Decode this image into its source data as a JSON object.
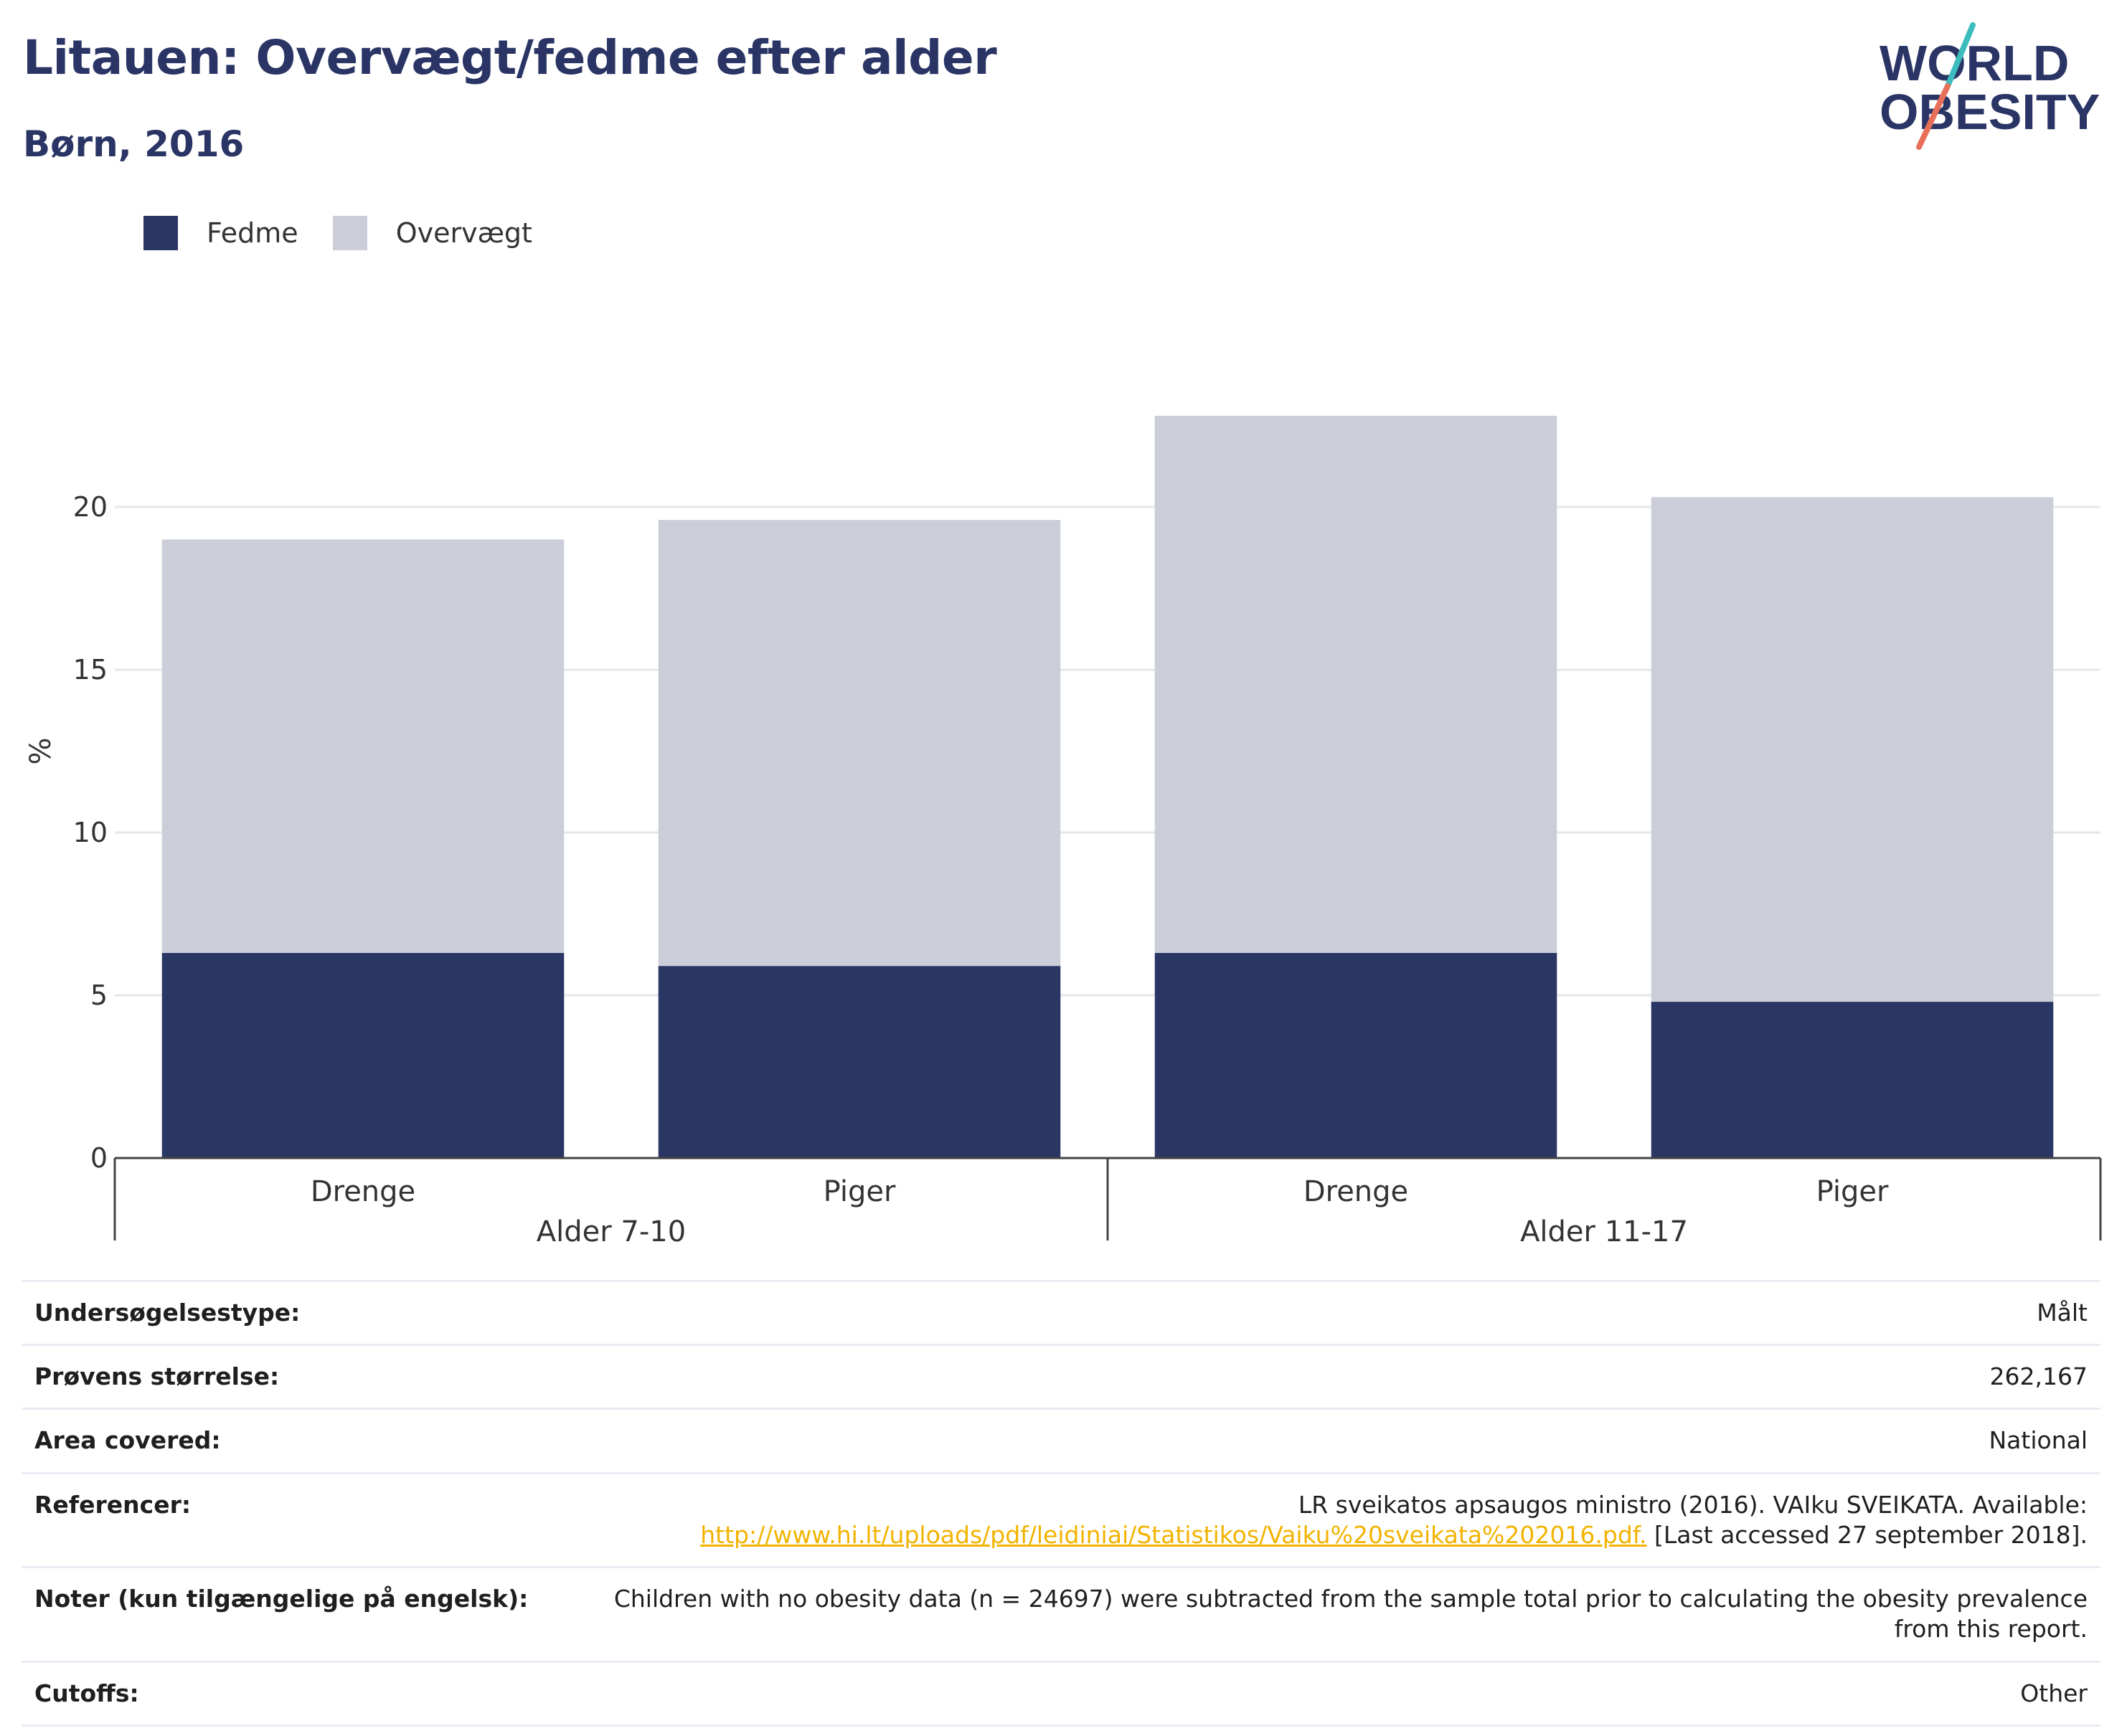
{
  "header": {
    "title": "Litauen: Overvægt/fedme efter alder",
    "subtitle": "Børn, 2016"
  },
  "logo": {
    "line1": "WORLD",
    "line2": "OBESITY",
    "colors": {
      "text": "#2a3565",
      "slash_top": "#3cbcbc",
      "slash_bottom": "#e8705a"
    }
  },
  "legend": {
    "items": [
      {
        "label": "Fedme",
        "color": "#2a3664"
      },
      {
        "label": "Overvægt",
        "color": "#cbcdd9"
      }
    ]
  },
  "chart_data": {
    "type": "bar",
    "stacked": true,
    "ylabel": "%",
    "ylim": [
      0,
      25
    ],
    "yticks": [
      0,
      5,
      10,
      15,
      20
    ],
    "grid": true,
    "legend_position": "top-left",
    "categories": [
      "Drenge",
      "Piger",
      "Drenge",
      "Piger"
    ],
    "groups": [
      {
        "label": "Alder 7-10",
        "categories": [
          "Drenge",
          "Piger"
        ]
      },
      {
        "label": "Alder 11-17",
        "categories": [
          "Drenge",
          "Piger"
        ]
      }
    ],
    "series": [
      {
        "name": "Fedme",
        "color": "#2a3664",
        "values": [
          6.3,
          5.9,
          6.3,
          4.8
        ]
      },
      {
        "name": "Overvægt",
        "color": "#cbcdd9",
        "values": [
          12.7,
          13.7,
          16.5,
          15.5
        ]
      }
    ]
  },
  "info": {
    "rows": [
      {
        "label": "Undersøgelsestype:",
        "value": "Målt"
      },
      {
        "label": "Prøvens størrelse:",
        "value": "262,167"
      },
      {
        "label": "Area covered:",
        "value": "National"
      },
      {
        "label": "Referencer:",
        "value_pre": "LR sveikatos apsaugos ministro (2016). VAIku SVEIKATA. Available:",
        "link": "http://www.hi.lt/uploads/pdf/leidiniai/Statistikos/Vaiku%20sveikata%202016.pdf.",
        "value_post": "[Last accessed 27 september 2018]."
      },
      {
        "label": "Noter (kun tilgængelige på engelsk):",
        "value": "Children with no obesity data (n = 24697) were subtracted from the sample total prior to calculating the obesity prevalence from this report."
      },
      {
        "label": "Cutoffs:",
        "value": "Other"
      }
    ]
  }
}
